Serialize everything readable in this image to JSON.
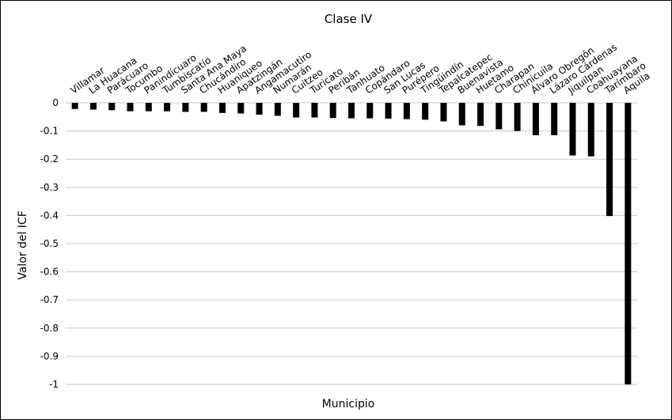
{
  "chart_data": {
    "type": "bar",
    "title": "Clase IV",
    "xlabel": "Municipio",
    "ylabel": "Valor del ICF",
    "ylim": [
      -1,
      0
    ],
    "yticks": [
      "0",
      "-0.1",
      "-0.2",
      "-0.3",
      "-0.4",
      "-0.5",
      "-0.6",
      "-0.7",
      "-0.8",
      "-0.9",
      "-1"
    ],
    "grid": true,
    "legend": false,
    "bar_color": "#000000",
    "grid_color": "#c8c8c8",
    "categories": [
      "Villamar",
      "La Huacana",
      "Parácuaro",
      "Tocumbo",
      "Panindícuaro",
      "Tumbiscatío",
      "Santa Ana Maya",
      "Chucándiro",
      "Huaniqueo",
      "Apatzingán",
      "Angamacutiro",
      "Numarán",
      "Cuitzeo",
      "Turicato",
      "Peribán",
      "Tanhuato",
      "Copándaro",
      "San Lucas",
      "Purépero",
      "Tingüindín",
      "Tepalcatepec",
      "Buenavista",
      "Huetamo",
      "Charapan",
      "Chinicuila",
      "Álvaro Obregón",
      "Lázaro Cárdenas",
      "Jiquilpan",
      "Coahuayana",
      "Tarímbaro",
      "Aquila"
    ],
    "values": [
      -0.022,
      -0.024,
      -0.026,
      -0.03,
      -0.03,
      -0.03,
      -0.032,
      -0.032,
      -0.036,
      -0.038,
      -0.042,
      -0.046,
      -0.052,
      -0.052,
      -0.054,
      -0.055,
      -0.055,
      -0.056,
      -0.058,
      -0.06,
      -0.066,
      -0.08,
      -0.082,
      -0.094,
      -0.1,
      -0.115,
      -0.115,
      -0.187,
      -0.19,
      -0.402,
      -1.0
    ]
  }
}
